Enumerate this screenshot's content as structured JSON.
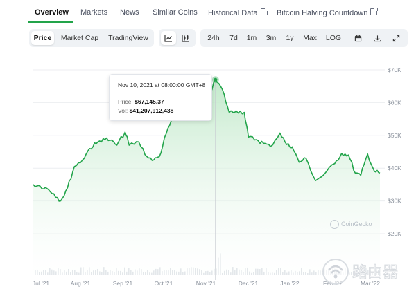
{
  "tabs": [
    {
      "label": "Overview",
      "active": true,
      "external": false
    },
    {
      "label": "Markets",
      "active": false,
      "external": false
    },
    {
      "label": "News",
      "active": false,
      "external": false
    },
    {
      "label": "Similar Coins",
      "active": false,
      "external": false
    },
    {
      "label": "Historical Data",
      "active": false,
      "external": true
    },
    {
      "label": "Bitcoin Halving Countdown",
      "active": false,
      "external": true
    }
  ],
  "chart_type_buttons": [
    {
      "label": "Price",
      "selected": true
    },
    {
      "label": "Market Cap",
      "selected": false
    },
    {
      "label": "TradingView",
      "selected": false
    }
  ],
  "chart_style_icons": [
    "line-chart-icon",
    "candlestick-icon"
  ],
  "range_buttons": [
    {
      "label": "24h"
    },
    {
      "label": "7d"
    },
    {
      "label": "1m"
    },
    {
      "label": "3m"
    },
    {
      "label": "1y"
    },
    {
      "label": "Max"
    },
    {
      "label": "LOG"
    }
  ],
  "tool_icons": [
    "calendar-icon",
    "download-icon",
    "expand-icon"
  ],
  "tooltip": {
    "date": "Nov 10, 2021 at 08:00:00 GMT+8",
    "price_label": "Price:",
    "price_value": "$67,145.37",
    "vol_label": "Vol:",
    "vol_value": "$41,207,912,438"
  },
  "watermark": "CoinGecko",
  "site_watermark": "路由器",
  "colors": {
    "accent": "#22a44a",
    "line": "#22a44a",
    "fill_top": "#bfe8c8",
    "grid": "#eceef1",
    "text_muted": "#8a919c"
  },
  "chart_data": {
    "type": "area",
    "title": "",
    "xlabel": "",
    "ylabel": "",
    "ylim": [
      20000,
      72000
    ],
    "y_ticks": [
      20000,
      30000,
      40000,
      50000,
      60000,
      70000
    ],
    "y_tick_labels": [
      "$20K",
      "$30K",
      "$40K",
      "$50K",
      "$60K",
      "$70K"
    ],
    "x_tick_labels": [
      "Jul '21",
      "Aug '21",
      "Sep '21",
      "Oct '21",
      "Nov '21",
      "Dec '21",
      "Jan '22",
      "Feb '22",
      "Mar '22"
    ],
    "x_ticks": [
      "2021-07-01",
      "2021-08-01",
      "2021-09-01",
      "2021-10-01",
      "2021-11-01",
      "2021-12-01",
      "2022-01-01",
      "2022-02-01",
      "2022-03-01"
    ],
    "grid": true,
    "series": [
      {
        "x": [
          "2021-06-30",
          "2021-07-05",
          "2021-07-10",
          "2021-07-15",
          "2021-07-20",
          "2021-07-25",
          "2021-07-30",
          "2021-08-05",
          "2021-08-10",
          "2021-08-15",
          "2021-08-20",
          "2021-08-25",
          "2021-08-30",
          "2021-09-05",
          "2021-09-08",
          "2021-09-15",
          "2021-09-21",
          "2021-09-26",
          "2021-09-30",
          "2021-10-05",
          "2021-10-10",
          "2021-10-15",
          "2021-10-20",
          "2021-10-25",
          "2021-10-30",
          "2021-11-05",
          "2021-11-10",
          "2021-11-15",
          "2021-11-20",
          "2021-11-25",
          "2021-12-01",
          "2021-12-04",
          "2021-12-10",
          "2021-12-15",
          "2021-12-20",
          "2021-12-27",
          "2022-01-01",
          "2022-01-05",
          "2022-01-10",
          "2022-01-15",
          "2022-01-22",
          "2022-01-28",
          "2022-02-05",
          "2022-02-10",
          "2022-02-15",
          "2022-02-20",
          "2022-02-24",
          "2022-03-01",
          "2022-03-06",
          "2022-03-10"
        ],
        "y": [
          35000,
          34500,
          33800,
          32200,
          30000,
          34000,
          40500,
          42500,
          46000,
          47500,
          49000,
          48500,
          47000,
          51000,
          47000,
          48000,
          43500,
          42500,
          43500,
          50500,
          55500,
          60000,
          62500,
          61000,
          61800,
          62000,
          67000,
          64000,
          57000,
          57500,
          57000,
          49500,
          48700,
          47600,
          46600,
          50700,
          47200,
          46500,
          41800,
          43000,
          36200,
          38000,
          41400,
          44500,
          44000,
          38500,
          37800,
          44300,
          39000,
          38500
        ]
      }
    ]
  }
}
